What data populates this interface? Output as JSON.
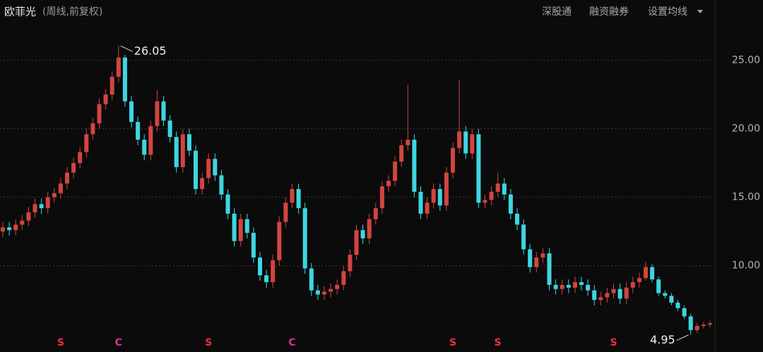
{
  "header": {
    "title": "欧菲光",
    "subtitle": "(周线,前复权)",
    "buttons": [
      "深股通",
      "融资融券",
      "设置均线"
    ]
  },
  "chart_data": {
    "type": "candlestick",
    "open": [
      12.5,
      12.8,
      12.6,
      13.0,
      13.3,
      13.9,
      14.5,
      14.2,
      15.0,
      15.3,
      16.0,
      16.8,
      17.5,
      18.3,
      19.6,
      20.4,
      21.8,
      22.5,
      23.8,
      25.2,
      22.0,
      20.5,
      19.2,
      18.1,
      20.2,
      22.0,
      20.6,
      19.4,
      17.2,
      19.6,
      18.4,
      15.6,
      16.4,
      17.8,
      16.6,
      15.2,
      13.8,
      11.8,
      13.4,
      12.4,
      10.6,
      9.3,
      8.8,
      10.4,
      13.2,
      14.6,
      15.6,
      14.2,
      9.8,
      8.2,
      7.9,
      8.1,
      8.3,
      8.6,
      9.6,
      10.8,
      12.6,
      12.0,
      13.4,
      14.2,
      15.8,
      16.2,
      17.6,
      18.8,
      19.2,
      15.4,
      13.8,
      14.6,
      15.6,
      14.4,
      16.8,
      18.6,
      19.8,
      18.2,
      19.6,
      14.6,
      14.8,
      15.4,
      16.0,
      15.2,
      13.8,
      13.0,
      11.2,
      9.9,
      10.6,
      10.9,
      8.6,
      8.3,
      8.6,
      8.4,
      8.8,
      8.6,
      8.2,
      7.5,
      7.7,
      8.0,
      8.3,
      7.6,
      8.4,
      8.8,
      9.1,
      9.9,
      9.0,
      8.0,
      7.8,
      7.3,
      6.9,
      6.3,
      5.3,
      5.6,
      5.7
    ],
    "high": [
      13.2,
      13.2,
      13.4,
      13.7,
      14.3,
      14.9,
      14.9,
      15.4,
      15.7,
      16.4,
      17.2,
      17.9,
      18.7,
      20.0,
      20.8,
      22.2,
      22.9,
      24.2,
      26.05,
      25.4,
      22.4,
      20.9,
      19.6,
      20.6,
      22.8,
      22.4,
      21.0,
      19.8,
      20.0,
      20.0,
      18.8,
      16.8,
      18.2,
      18.2,
      17.0,
      15.6,
      14.2,
      13.8,
      13.8,
      12.8,
      11.0,
      9.7,
      10.8,
      13.6,
      15.0,
      16.0,
      16.0,
      14.6,
      10.2,
      8.6,
      8.5,
      8.7,
      9.0,
      10.0,
      11.2,
      13.0,
      13.0,
      13.8,
      14.6,
      16.2,
      16.6,
      18.0,
      19.2,
      23.2,
      19.6,
      15.8,
      15.0,
      16.0,
      16.0,
      17.2,
      19.0,
      23.6,
      20.2,
      20.0,
      20.0,
      15.2,
      15.8,
      16.8,
      16.4,
      15.6,
      14.2,
      13.4,
      11.6,
      11.0,
      11.3,
      11.3,
      9.0,
      9.0,
      9.0,
      9.2,
      9.2,
      9.0,
      8.6,
      8.1,
      8.4,
      8.7,
      8.7,
      8.8,
      9.2,
      9.5,
      10.3,
      10.1,
      9.2,
      8.2,
      8.0,
      7.5,
      7.1,
      6.5,
      5.8,
      5.9,
      6.0
    ],
    "low": [
      12.1,
      12.2,
      12.2,
      12.6,
      12.9,
      13.5,
      13.8,
      13.8,
      14.6,
      14.9,
      15.6,
      16.4,
      17.1,
      17.9,
      19.2,
      20.0,
      21.4,
      22.1,
      23.4,
      21.6,
      20.1,
      18.8,
      17.7,
      17.7,
      19.8,
      20.2,
      19.0,
      16.8,
      16.8,
      18.0,
      15.2,
      15.2,
      16.0,
      16.2,
      14.8,
      13.4,
      11.4,
      11.4,
      12.0,
      10.2,
      8.9,
      8.4,
      8.4,
      10.0,
      12.8,
      14.2,
      13.8,
      9.4,
      7.8,
      7.5,
      7.5,
      7.7,
      7.9,
      8.2,
      9.2,
      10.4,
      11.6,
      11.6,
      13.0,
      13.8,
      15.4,
      15.8,
      17.2,
      18.4,
      15.0,
      13.4,
      13.4,
      14.2,
      14.0,
      14.0,
      16.4,
      18.2,
      17.8,
      17.8,
      14.2,
      14.2,
      14.4,
      15.0,
      14.8,
      13.4,
      12.6,
      10.8,
      9.5,
      9.5,
      10.2,
      8.2,
      7.9,
      7.9,
      8.0,
      8.0,
      8.2,
      7.8,
      7.1,
      7.1,
      7.3,
      7.6,
      7.2,
      7.2,
      8.0,
      8.4,
      8.9,
      8.8,
      7.8,
      7.6,
      7.1,
      6.7,
      6.1,
      4.95,
      5.1,
      5.4,
      5.5
    ],
    "close": [
      12.8,
      12.6,
      13.0,
      13.3,
      13.9,
      14.5,
      14.2,
      15.0,
      15.3,
      16.0,
      16.8,
      17.5,
      18.3,
      19.6,
      20.4,
      21.8,
      22.5,
      23.8,
      25.2,
      22.0,
      20.5,
      19.2,
      18.1,
      20.2,
      22.0,
      20.6,
      19.4,
      17.2,
      19.6,
      18.4,
      15.6,
      16.4,
      17.8,
      16.6,
      15.2,
      13.8,
      11.8,
      13.4,
      12.4,
      10.6,
      9.3,
      8.8,
      10.4,
      13.2,
      14.6,
      15.6,
      14.2,
      9.8,
      8.2,
      7.9,
      8.1,
      8.3,
      8.6,
      9.6,
      10.8,
      12.6,
      12.0,
      13.4,
      14.2,
      15.8,
      16.2,
      17.6,
      18.8,
      19.2,
      15.4,
      13.8,
      14.6,
      15.6,
      14.4,
      16.8,
      18.6,
      19.8,
      18.2,
      19.6,
      14.6,
      14.8,
      15.4,
      16.0,
      15.2,
      13.8,
      13.0,
      11.2,
      9.9,
      10.6,
      10.9,
      8.6,
      8.3,
      8.6,
      8.4,
      8.8,
      8.6,
      8.2,
      7.5,
      7.7,
      8.0,
      8.3,
      7.6,
      8.4,
      8.8,
      9.1,
      9.9,
      9.0,
      8.0,
      7.8,
      7.3,
      6.9,
      6.3,
      5.3,
      5.6,
      5.7,
      5.8
    ],
    "up_color": "#d2453f",
    "down_color": "#3dd6e0",
    "ylim": [
      3.7,
      27.6
    ],
    "yticks": [
      {
        "value": 10,
        "label": "10.00"
      },
      {
        "value": 15,
        "label": "15.00"
      },
      {
        "value": 20,
        "label": "20.00"
      },
      {
        "value": 25,
        "label": "25.00"
      }
    ],
    "grid": true,
    "annotations": [
      {
        "index": 18,
        "value": 26.05,
        "side": "right"
      },
      {
        "index": 107,
        "value": 4.95,
        "side": "left"
      }
    ],
    "markers": [
      {
        "index": 9,
        "label": "S",
        "color": "#e8303a"
      },
      {
        "index": 18,
        "label": "C",
        "color": "#e0309e"
      },
      {
        "index": 32,
        "label": "S",
        "color": "#e8303a"
      },
      {
        "index": 45,
        "label": "C",
        "color": "#e0309e"
      },
      {
        "index": 70,
        "label": "S",
        "color": "#e8303a"
      },
      {
        "index": 77,
        "label": "S",
        "color": "#e8303a"
      },
      {
        "index": 95,
        "label": "S",
        "color": "#e8303a"
      }
    ]
  }
}
